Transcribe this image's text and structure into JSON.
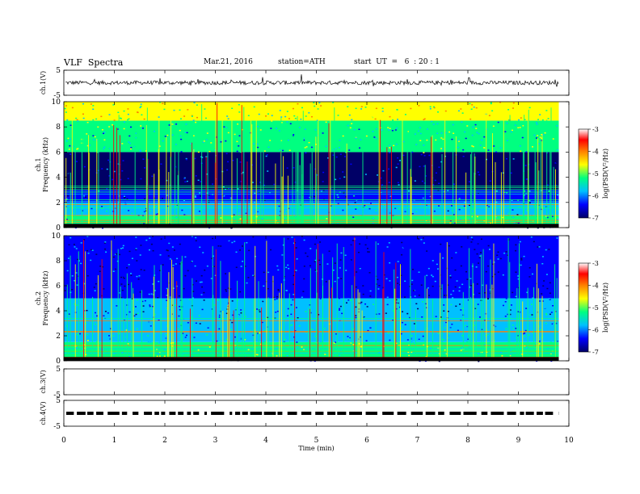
{
  "header": {
    "title": "VLF  Spectra",
    "date": "Mar.21, 2016",
    "station": "station=ATH",
    "start": "start  UT  =   6  : 20 : 1"
  },
  "colorbar": {
    "label": "log(PSD(V²/Hz)",
    "ticks": [
      "-3",
      "-4",
      "-5",
      "-6",
      "-7"
    ],
    "colors": [
      "#000066",
      "#0000ff",
      "#00c0ff",
      "#00ff80",
      "#ffff00",
      "#ff8000",
      "#ff0000",
      "#ffffff"
    ]
  },
  "chart_data": [
    {
      "type": "line",
      "name": "ch1-waveform",
      "ylabel": "ch.1(V)",
      "ylim": [
        -5,
        5
      ],
      "yticks": [
        "5",
        "-5"
      ],
      "baseline": 0
    },
    {
      "type": "heatmap",
      "name": "ch1-spectrogram",
      "ylabel": "ch.1\nFrequency  (kHz)",
      "ylabel_lines": [
        "ch.1",
        "Frequency  (kHz)"
      ],
      "ylim": [
        0,
        10
      ],
      "yticks": [
        "0",
        "2",
        "4",
        "6",
        "8",
        "10"
      ],
      "xlim": [
        0,
        10
      ],
      "data_end_min": 9.8,
      "bands": [
        {
          "from": 0.0,
          "to": 0.3,
          "level": 0.0
        },
        {
          "from": 0.3,
          "to": 1.0,
          "level": 0.45
        },
        {
          "from": 1.0,
          "to": 2.0,
          "level": 0.3
        },
        {
          "from": 2.0,
          "to": 3.0,
          "level": 0.2
        },
        {
          "from": 3.0,
          "to": 6.0,
          "level": 0.05
        },
        {
          "from": 6.0,
          "to": 8.5,
          "level": 0.45
        },
        {
          "from": 8.5,
          "to": 10.0,
          "level": 0.6
        }
      ]
    },
    {
      "type": "heatmap",
      "name": "ch2-spectrogram",
      "ylabel": "ch.2\nFrequency  (kHz)",
      "ylabel_lines": [
        "ch.2",
        "Frequency  (kHz)"
      ],
      "ylim": [
        0,
        10
      ],
      "yticks": [
        "0",
        "2",
        "4",
        "6",
        "8",
        "10"
      ],
      "xlim": [
        0,
        10
      ],
      "data_end_min": 9.8,
      "bands": [
        {
          "from": 0.0,
          "to": 0.3,
          "level": 0.0
        },
        {
          "from": 0.3,
          "to": 1.5,
          "level": 0.5
        },
        {
          "from": 1.5,
          "to": 3.0,
          "level": 0.35
        },
        {
          "from": 3.0,
          "to": 5.0,
          "level": 0.25
        },
        {
          "from": 5.0,
          "to": 10.0,
          "level": 0.15
        }
      ]
    },
    {
      "type": "line",
      "name": "ch3-waveform",
      "ylabel": "ch.3(V)",
      "ylim": [
        -5,
        5
      ],
      "yticks": [
        "5",
        "-5"
      ]
    },
    {
      "type": "line",
      "name": "ch4-waveform",
      "ylabel": "ch.4(V)",
      "ylim": [
        -5,
        5
      ],
      "yticks": [
        "5",
        "-5"
      ],
      "baseline": 0
    }
  ],
  "xaxis": {
    "label": "Time  (min)",
    "ticks": [
      "0",
      "1",
      "2",
      "3",
      "4",
      "5",
      "6",
      "7",
      "8",
      "9",
      "10"
    ],
    "xlim": [
      0,
      10
    ]
  }
}
